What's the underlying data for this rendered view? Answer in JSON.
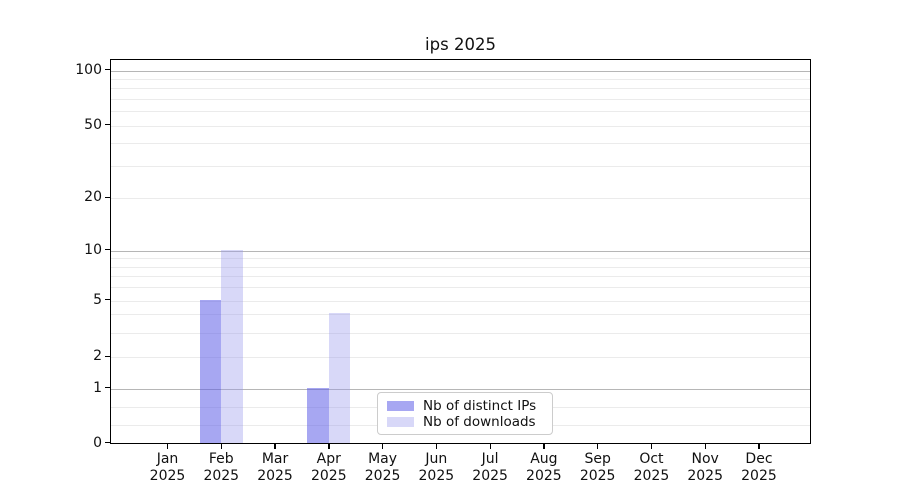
{
  "title": "ips 2025",
  "chart_data": {
    "type": "bar",
    "title": "ips 2025",
    "categories": [
      "Jan",
      "Feb",
      "Mar",
      "Apr",
      "May",
      "Jun",
      "Jul",
      "Aug",
      "Sep",
      "Oct",
      "Nov",
      "Dec"
    ],
    "category_year_label": "2025",
    "series": [
      {
        "name": "Nb of distinct IPs",
        "color": "rgba(89,89,230,0.53)",
        "values": [
          0,
          5,
          0,
          1,
          0,
          0,
          0,
          0,
          0,
          0,
          0,
          0
        ]
      },
      {
        "name": "Nb of downloads",
        "color": "rgba(148,148,235,0.37)",
        "values": [
          0,
          10,
          0,
          4,
          0,
          0,
          0,
          0,
          0,
          0,
          0,
          0
        ]
      }
    ],
    "yticks": [
      0,
      1,
      2,
      5,
      10,
      20,
      50,
      100
    ],
    "yscale": "symlog",
    "ylim": [
      0,
      115
    ],
    "xlabel": "",
    "ylabel": "",
    "grid": "on",
    "legend_position": "lower center"
  },
  "colors": {
    "distinct_ips_bar": "rgba(89,89,230,0.53)",
    "downloads_bar": "rgba(148,148,235,0.37)",
    "major_gridline": "#b6b6b6",
    "minor_gridline": "#ebebeb",
    "legend_border": "#cccccc"
  }
}
